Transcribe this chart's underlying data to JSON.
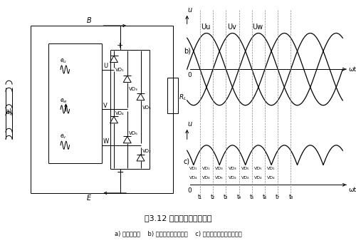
{
  "title": "图3.12 交流发电机整流原理",
  "subtitle": "a) 整流电路图    b) 三相绕组电压波形图    c) 整流后发电机输出波形图",
  "label_b": "b)",
  "label_c": "c)",
  "label_a": "a)",
  "Uu_label": "Uu",
  "Uv_label": "Uv",
  "Uw_label": "Uw",
  "omega_t": "ωt",
  "phase_shift": 2.094395102393195,
  "bg_color": "#ffffff",
  "line_color": "#000000",
  "VD_top_labels": [
    "VD₁",
    "VD₃",
    "VD₅"
  ],
  "VD_bot_labels": [
    "VD₄",
    "VD₆",
    "VD₂"
  ],
  "vd_pairs": [
    [
      "VD₁",
      "VD₄"
    ],
    [
      "VD₁",
      "VD₄"
    ],
    [
      "VD₃",
      "VD₆"
    ],
    [
      "VD₃",
      "VD₂"
    ],
    [
      "VD₅",
      "VD₂"
    ],
    [
      "VD₅",
      "VD₄"
    ],
    [
      "VD₁",
      "VD₄"
    ]
  ],
  "t_labels": [
    "t₁",
    "t₂",
    "t₃",
    "t₄",
    "t₅",
    "t₆",
    "t₇",
    "t₈"
  ]
}
